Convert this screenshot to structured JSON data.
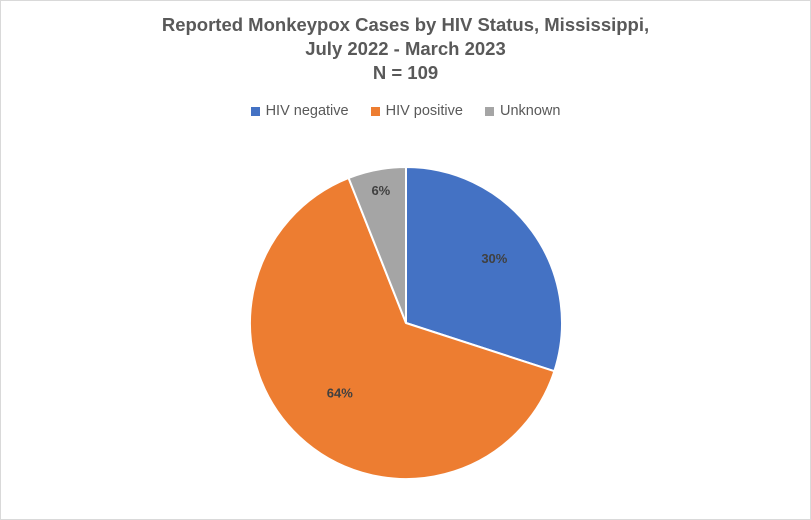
{
  "chart_data": {
    "type": "pie",
    "title_lines": [
      "Reported Monkeypox Cases by HIV Status, Mississippi,",
      "July 2022 - March 2023",
      "N = 109"
    ],
    "categories": [
      "HIV negative",
      "HIV positive",
      "Unknown"
    ],
    "values": [
      30,
      64,
      6
    ],
    "labels": [
      "30%",
      "64%",
      "6%"
    ],
    "colors": [
      "#4472c4",
      "#ed7d31",
      "#a5a5a5"
    ],
    "legend_position": "top",
    "start_angle": "12 o'clock",
    "direction": "clockwise"
  }
}
